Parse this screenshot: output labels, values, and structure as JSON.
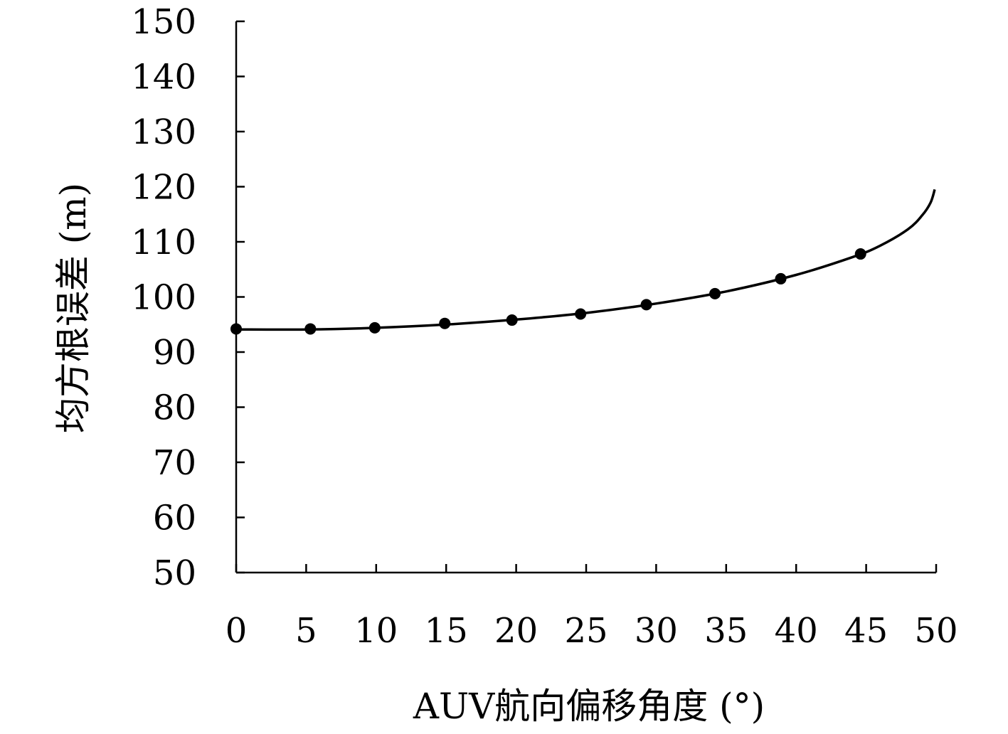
{
  "chart_data": {
    "type": "line",
    "title": "",
    "xlabel": "AUV航向偏移角度 (°)",
    "ylabel": "均方根误差 (m)",
    "xlim": [
      0,
      50
    ],
    "ylim": [
      50,
      150
    ],
    "xticks": [
      0,
      5,
      10,
      15,
      20,
      25,
      30,
      35,
      40,
      45,
      50
    ],
    "yticks": [
      50,
      60,
      70,
      80,
      90,
      100,
      110,
      120,
      130,
      140,
      150
    ],
    "grid": false,
    "legend": "none",
    "series": [
      {
        "style": "markers",
        "x": [
          0,
          5.3,
          9.9,
          14.9,
          19.7,
          24.6,
          29.3,
          34.2,
          38.9,
          44.6
        ],
        "y": [
          94.2,
          94.2,
          94.4,
          95.2,
          95.8,
          96.9,
          98.6,
          100.6,
          103.3,
          107.8
        ]
      },
      {
        "style": "line",
        "x": [
          0,
          5,
          10,
          15,
          20,
          25,
          30,
          35,
          40,
          44,
          46,
          48,
          49,
          49.6,
          49.9
        ],
        "y": [
          94.1,
          94.1,
          94.4,
          95.0,
          95.9,
          97.1,
          98.8,
          101.0,
          104.0,
          107.2,
          109.3,
          112.3,
          114.8,
          117.1,
          119.5
        ]
      }
    ],
    "colors": {
      "line": "#000000",
      "marker": "#000000",
      "axis": "#000000"
    }
  }
}
